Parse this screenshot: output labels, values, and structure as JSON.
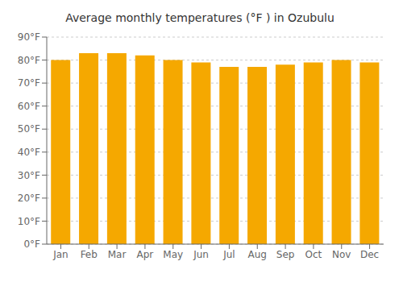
{
  "chart_data": {
    "type": "bar",
    "title": "Average monthly temperatures (°F ) in Ozubulu",
    "categories": [
      "Jan",
      "Feb",
      "Mar",
      "Apr",
      "May",
      "Jun",
      "Jul",
      "Aug",
      "Sep",
      "Oct",
      "Nov",
      "Dec"
    ],
    "values": [
      80,
      83,
      83,
      82,
      80,
      79,
      77,
      77,
      78,
      79,
      80,
      79
    ],
    "color": "#F5A800",
    "ylim": [
      0,
      90
    ],
    "yticks": [
      {
        "value": 0,
        "label": "0°F"
      },
      {
        "value": 10,
        "label": "10°F"
      },
      {
        "value": 20,
        "label": "20°F"
      },
      {
        "value": 30,
        "label": "30°F"
      },
      {
        "value": 40,
        "label": "40°F"
      },
      {
        "value": 50,
        "label": "50°F"
      },
      {
        "value": 60,
        "label": "60°F"
      },
      {
        "value": 70,
        "label": "70°F"
      },
      {
        "value": 80,
        "label": "80°F"
      },
      {
        "value": 90,
        "label": "90°F"
      }
    ],
    "grid": true
  }
}
